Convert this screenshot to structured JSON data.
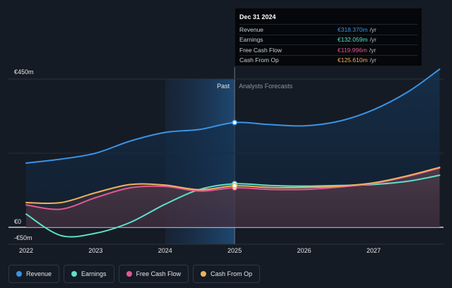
{
  "chart_data": {
    "type": "area",
    "x_range": [
      2021.95,
      2027.95
    ],
    "y_range": [
      -65,
      470
    ],
    "y_ticks": [
      {
        "label": "€450m",
        "value": 450
      },
      {
        "label": "€0",
        "value": 0
      },
      {
        "label": "-€50m",
        "value": -50
      }
    ],
    "x_ticks": [
      "2022",
      "2023",
      "2024",
      "2025",
      "2026",
      "2027"
    ],
    "past_start": 2024.0,
    "divider_x": 2025.0,
    "past_label": "Past",
    "forecast_label": "Analysts Forecasts",
    "series": [
      {
        "name": "Revenue",
        "color": "#3a93e6",
        "points": [
          [
            2022.0,
            195
          ],
          [
            2022.5,
            207
          ],
          [
            2023.0,
            225
          ],
          [
            2023.5,
            262
          ],
          [
            2024.0,
            288
          ],
          [
            2024.5,
            297
          ],
          [
            2025.0,
            318
          ],
          [
            2025.5,
            312
          ],
          [
            2026.0,
            308
          ],
          [
            2026.5,
            322
          ],
          [
            2027.0,
            357
          ],
          [
            2027.5,
            412
          ],
          [
            2027.95,
            480
          ]
        ]
      },
      {
        "name": "Earnings",
        "color": "#5de0cc",
        "points": [
          [
            2022.0,
            40
          ],
          [
            2022.5,
            -25
          ],
          [
            2023.0,
            -18
          ],
          [
            2023.5,
            15
          ],
          [
            2024.0,
            70
          ],
          [
            2024.5,
            115
          ],
          [
            2025.0,
            132
          ],
          [
            2025.5,
            127
          ],
          [
            2026.0,
            125
          ],
          [
            2026.5,
            127
          ],
          [
            2027.0,
            130
          ],
          [
            2027.5,
            140
          ],
          [
            2027.95,
            158
          ]
        ]
      },
      {
        "name": "Free Cash Flow",
        "color": "#e25793",
        "points": [
          [
            2022.0,
            68
          ],
          [
            2022.5,
            55
          ],
          [
            2023.0,
            90
          ],
          [
            2023.5,
            120
          ],
          [
            2024.0,
            124
          ],
          [
            2024.5,
            110
          ],
          [
            2025.0,
            120
          ],
          [
            2025.5,
            115
          ],
          [
            2026.0,
            115
          ],
          [
            2026.5,
            122
          ],
          [
            2027.0,
            133
          ],
          [
            2027.5,
            155
          ],
          [
            2027.95,
            180
          ]
        ]
      },
      {
        "name": "Cash From Op",
        "color": "#f0b15c",
        "points": [
          [
            2022.0,
            75
          ],
          [
            2022.5,
            75
          ],
          [
            2023.0,
            105
          ],
          [
            2023.5,
            130
          ],
          [
            2024.0,
            128
          ],
          [
            2024.5,
            114
          ],
          [
            2025.0,
            126
          ],
          [
            2025.5,
            121
          ],
          [
            2026.0,
            121
          ],
          [
            2026.5,
            125
          ],
          [
            2027.0,
            135
          ],
          [
            2027.5,
            157
          ],
          [
            2027.95,
            182
          ]
        ]
      }
    ],
    "tooltip": {
      "date": "Dec 31 2024",
      "rows": [
        {
          "name": "Revenue",
          "value": "€318.370m",
          "unit": "/yr",
          "color": "#3a93e6"
        },
        {
          "name": "Earnings",
          "value": "€132.059m",
          "unit": "/yr",
          "color": "#5de0cc"
        },
        {
          "name": "Free Cash Flow",
          "value": "€119.996m",
          "unit": "/yr",
          "color": "#e25793"
        },
        {
          "name": "Cash From Op",
          "value": "€125.610m",
          "unit": "/yr",
          "color": "#f0b15c"
        }
      ]
    },
    "legend": [
      {
        "name": "Revenue",
        "color": "#3a93e6"
      },
      {
        "name": "Earnings",
        "color": "#5de0cc"
      },
      {
        "name": "Free Cash Flow",
        "color": "#e25793"
      },
      {
        "name": "Cash From Op",
        "color": "#f0b15c"
      }
    ]
  }
}
